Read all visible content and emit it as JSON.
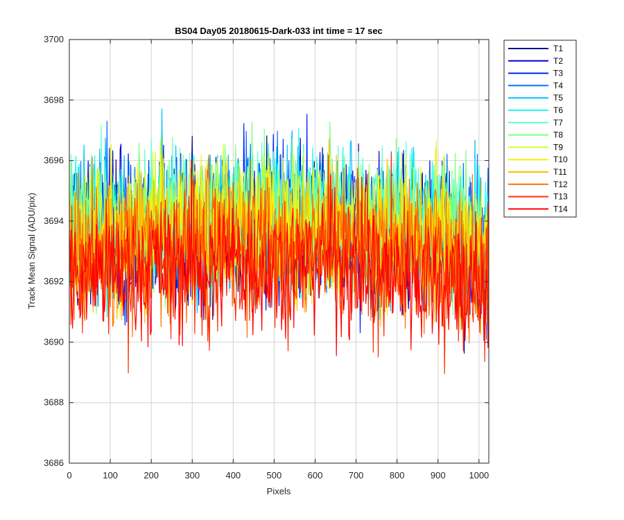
{
  "chart_data": {
    "type": "line",
    "title": "BS04 Day05 20180615-Dark-033 int time = 17 sec",
    "xlabel": "Pixels",
    "ylabel": "Track Mean Signal (ADU/pix)",
    "xlim": [
      0,
      1024
    ],
    "ylim": [
      3686,
      3700
    ],
    "xticks": [
      0,
      100,
      200,
      300,
      400,
      500,
      600,
      700,
      800,
      900,
      1000
    ],
    "yticks": [
      3686,
      3688,
      3690,
      3692,
      3694,
      3696,
      3698,
      3700
    ],
    "grid": true,
    "legend_position": "outside-top-right",
    "x": [
      0,
      64,
      128,
      192,
      256,
      320,
      384,
      448,
      512,
      576,
      640,
      704,
      768,
      832,
      896,
      960,
      1024
    ],
    "series": [
      {
        "name": "T1",
        "color": "#00008f",
        "values": [
          3693.4,
          3693.6,
          3693.5,
          3693.5,
          3693.7,
          3693.6,
          3693.8,
          3693.7,
          3693.6,
          3693.7,
          3693.8,
          3693.6,
          3693.5,
          3693.4,
          3693.4,
          3693.2,
          3692.8
        ]
      },
      {
        "name": "T2",
        "color": "#0000d6",
        "values": [
          3693.5,
          3693.6,
          3693.6,
          3693.6,
          3693.8,
          3693.7,
          3693.9,
          3693.8,
          3693.7,
          3693.8,
          3693.9,
          3693.7,
          3693.6,
          3693.5,
          3693.5,
          3693.3,
          3692.9
        ]
      },
      {
        "name": "T3",
        "color": "#0020ff",
        "values": [
          3693.6,
          3693.7,
          3693.7,
          3693.7,
          3693.9,
          3693.8,
          3694.0,
          3693.9,
          3693.8,
          3693.9,
          3694.0,
          3693.8,
          3693.7,
          3693.6,
          3693.6,
          3693.4,
          3693.0
        ]
      },
      {
        "name": "T4",
        "color": "#0070ff",
        "values": [
          3693.7,
          3693.8,
          3693.8,
          3693.8,
          3694.0,
          3693.9,
          3694.1,
          3694.0,
          3693.9,
          3694.0,
          3694.1,
          3693.9,
          3693.8,
          3693.7,
          3693.7,
          3693.5,
          3693.1
        ]
      },
      {
        "name": "T5",
        "color": "#00bfff",
        "values": [
          3693.8,
          3693.9,
          3693.9,
          3693.9,
          3694.1,
          3694.0,
          3694.2,
          3694.1,
          3694.0,
          3694.1,
          3694.2,
          3694.0,
          3693.9,
          3693.8,
          3693.8,
          3693.6,
          3693.2
        ]
      },
      {
        "name": "T6",
        "color": "#10ffef",
        "values": [
          3693.9,
          3694.0,
          3694.0,
          3694.0,
          3694.2,
          3694.1,
          3694.3,
          3694.2,
          3694.1,
          3694.2,
          3694.3,
          3694.1,
          3694.0,
          3693.9,
          3693.9,
          3693.7,
          3693.3
        ]
      },
      {
        "name": "T7",
        "color": "#60ffcf",
        "values": [
          3693.9,
          3694.0,
          3694.0,
          3694.1,
          3694.2,
          3694.2,
          3694.4,
          3694.3,
          3694.2,
          3694.2,
          3694.3,
          3694.1,
          3694.0,
          3693.9,
          3693.9,
          3693.7,
          3693.3
        ]
      },
      {
        "name": "T8",
        "color": "#80ff80",
        "values": [
          3693.8,
          3693.9,
          3693.9,
          3694.0,
          3694.1,
          3694.1,
          3694.3,
          3694.2,
          3694.1,
          3694.1,
          3694.2,
          3694.0,
          3693.9,
          3693.8,
          3693.8,
          3693.6,
          3693.2
        ]
      },
      {
        "name": "T9",
        "color": "#cfff30",
        "values": [
          3693.7,
          3693.8,
          3693.8,
          3693.9,
          3694.0,
          3694.0,
          3694.2,
          3694.1,
          3694.0,
          3694.0,
          3694.1,
          3693.9,
          3693.8,
          3693.7,
          3693.7,
          3693.5,
          3693.1
        ]
      },
      {
        "name": "T10",
        "color": "#ffef00",
        "values": [
          3693.5,
          3693.6,
          3693.6,
          3693.7,
          3693.8,
          3693.8,
          3694.0,
          3693.9,
          3693.8,
          3693.8,
          3693.9,
          3693.7,
          3693.6,
          3693.5,
          3693.5,
          3693.3,
          3692.9
        ]
      },
      {
        "name": "T11",
        "color": "#ffbf00",
        "values": [
          3693.2,
          3693.3,
          3693.3,
          3693.4,
          3693.5,
          3693.5,
          3693.7,
          3693.6,
          3693.5,
          3693.5,
          3693.6,
          3693.4,
          3693.3,
          3693.2,
          3693.2,
          3693.0,
          3692.6
        ]
      },
      {
        "name": "T12",
        "color": "#ff7000",
        "values": [
          3692.9,
          3693.0,
          3693.0,
          3693.1,
          3693.2,
          3693.2,
          3693.4,
          3693.3,
          3693.2,
          3693.2,
          3693.3,
          3693.1,
          3693.0,
          3692.9,
          3692.9,
          3692.7,
          3692.3
        ]
      },
      {
        "name": "T13",
        "color": "#ff3000",
        "values": [
          3692.5,
          3692.6,
          3692.6,
          3692.7,
          3692.8,
          3692.8,
          3693.0,
          3692.9,
          3692.8,
          3692.8,
          3692.9,
          3692.7,
          3692.6,
          3692.5,
          3692.5,
          3692.3,
          3691.9
        ]
      },
      {
        "name": "T14",
        "color": "#ff0000",
        "values": [
          3692.2,
          3692.3,
          3692.3,
          3692.4,
          3692.5,
          3692.5,
          3692.7,
          3692.6,
          3692.5,
          3692.5,
          3692.6,
          3692.4,
          3692.3,
          3692.2,
          3692.2,
          3692.0,
          3691.6
        ]
      }
    ]
  }
}
